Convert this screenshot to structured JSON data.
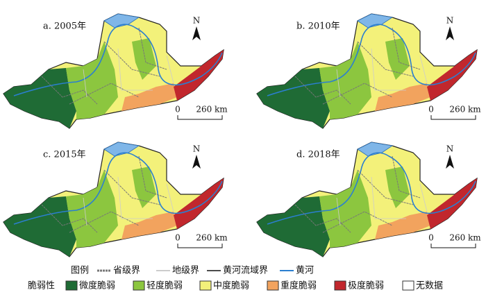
{
  "panels": [
    {
      "label": "a. 2005年",
      "north": "N",
      "scale_start": "0",
      "scale_end": "260 km"
    },
    {
      "label": "b. 2010年",
      "north": "N",
      "scale_start": "0",
      "scale_end": "260 km"
    },
    {
      "label": "c. 2015年",
      "north": "N",
      "scale_start": "0",
      "scale_end": "260 km"
    },
    {
      "label": "d. 2018年",
      "north": "N",
      "scale_start": "0",
      "scale_end": "260 km"
    }
  ],
  "legend": {
    "title": "图例",
    "boundaries": [
      "省级界",
      "地级界",
      "黄河流域界",
      "黄河"
    ],
    "vulnerability_title": "脆弱性",
    "classes": [
      "微度脆弱",
      "轻度脆弱",
      "中度脆弱",
      "重度脆弱",
      "极度脆弱",
      "无数据"
    ]
  }
}
